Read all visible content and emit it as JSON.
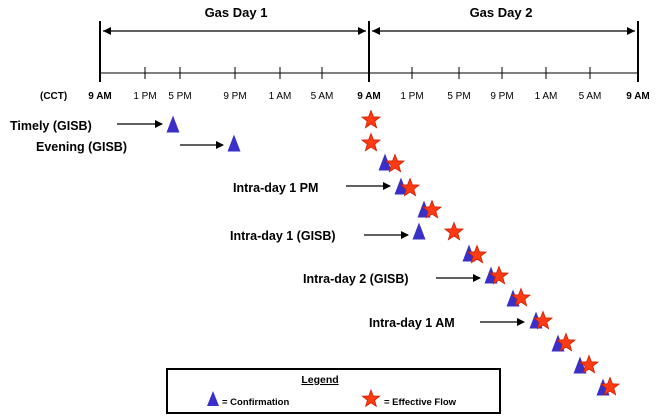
{
  "gas_days": [
    {
      "label": "Gas Day 1"
    },
    {
      "label": "Gas Day 2"
    }
  ],
  "timeline": {
    "prefix": "(CCT)",
    "ticks": [
      "9 AM",
      "1 PM",
      "5 PM",
      "9 PM",
      "1 AM",
      "5 AM",
      "9 AM",
      "1 PM",
      "5 PM",
      "9 PM",
      "1 AM",
      "5 AM",
      "9 AM"
    ],
    "bold_ticks": [
      0,
      6,
      12
    ]
  },
  "cycles": [
    {
      "label": "Timely (GISB)"
    },
    {
      "label": "Evening (GISB)"
    },
    {
      "label": "Intra-day 1 PM"
    },
    {
      "label": "Intra-day 1 (GISB)"
    },
    {
      "label": "Intra-day 2 (GISB)"
    },
    {
      "label": "Intra-day 1 AM"
    }
  ],
  "legend": {
    "title": "Legend",
    "confirmation": "= Confirmation",
    "effective_flow": "= Effective Flow"
  },
  "colors": {
    "confirmation": "#3a2fc6",
    "effective_flow": "#ff3b13",
    "effective_flow_stroke": "#cc1f00",
    "line": "#000000"
  }
}
